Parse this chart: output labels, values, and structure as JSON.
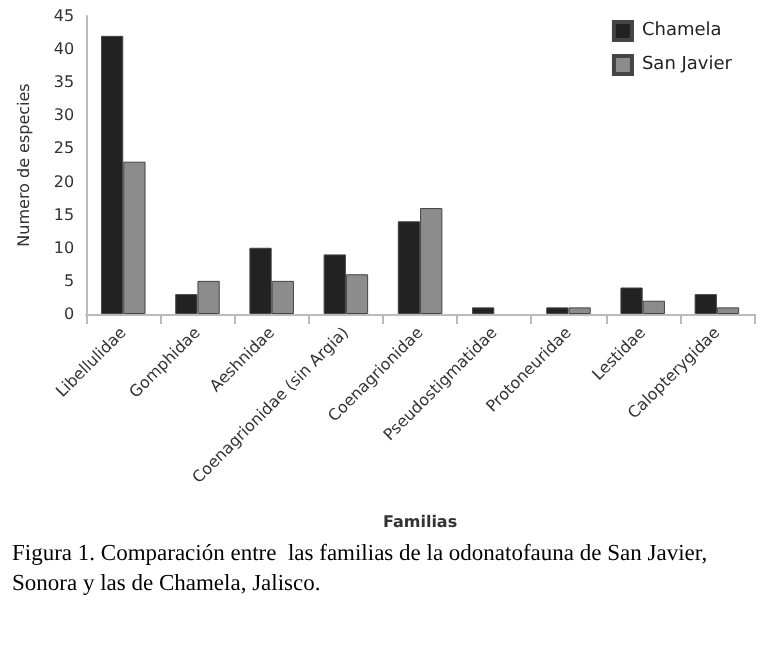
{
  "chart_data": {
    "type": "bar",
    "xlabel": "Familias",
    "ylabel": "Numero de especies",
    "categories": [
      "Libellulidae",
      "Gomphidae",
      "Aeshnidae",
      "Coenagrionidae (sin Argia)",
      "Coenagrionidae",
      "Pseudostigmatidae",
      "Protoneuridae",
      "Lestidae",
      "Calopterygidae"
    ],
    "series": [
      {
        "name": "Chamela",
        "color": "#222222",
        "values": [
          42,
          3,
          10,
          9,
          14,
          1,
          1,
          4,
          3
        ]
      },
      {
        "name": "San Javier",
        "color": "#8c8c8c",
        "values": [
          23,
          5,
          5,
          6,
          16,
          null,
          1,
          2,
          1
        ]
      }
    ],
    "ylim": [
      0,
      45
    ],
    "yticks": [
      0,
      5,
      10,
      15,
      20,
      25,
      30,
      35,
      40,
      45
    ],
    "grid": false,
    "legend": "top right",
    "annotations": [
      "Figura 1. Comparación entre  las familias de la odonatofauna de San Javier, Sonora y las de Chamela, Jalisco."
    ]
  }
}
